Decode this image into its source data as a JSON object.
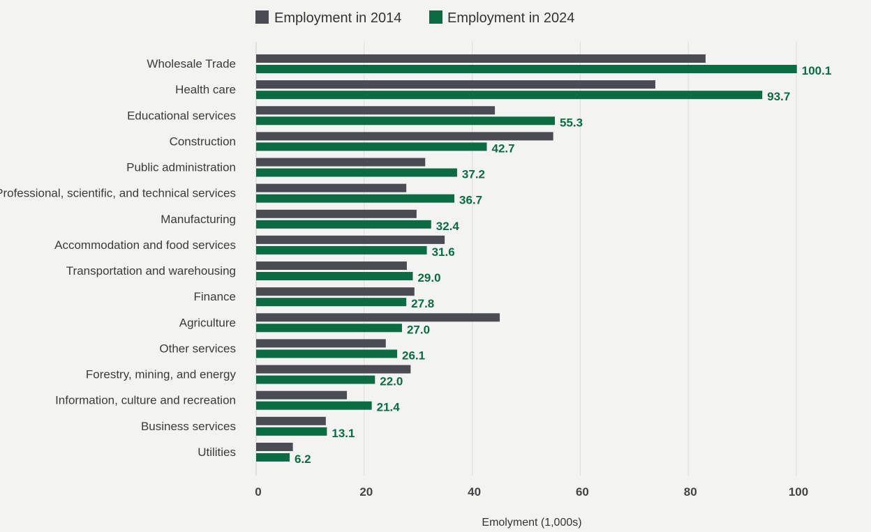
{
  "chart_data": {
    "type": "bar",
    "orientation": "horizontal",
    "categories": [
      "Wholesale Trade",
      "Health care",
      "Educational services",
      "Construction",
      "Public administration",
      "Professional, scientific, and technical services",
      "Manufacturing",
      "Accommodation and food services",
      "Transportation and warehousing",
      "Finance",
      "Agriculture",
      "Other services",
      "Forestry, mining, and energy",
      "Information, culture and recreation",
      "Business services",
      "Utilities"
    ],
    "series": [
      {
        "name": "Employment in 2014",
        "color": "#4b4b53",
        "values": [
          83.2,
          73.9,
          44.2,
          55.0,
          31.3,
          27.8,
          29.7,
          34.9,
          27.9,
          29.3,
          45.1,
          24.0,
          28.6,
          16.8,
          12.9,
          6.8
        ]
      },
      {
        "name": "Employment in 2024",
        "color": "#0b6b43",
        "values": [
          100.1,
          93.7,
          55.3,
          42.7,
          37.2,
          36.7,
          32.4,
          31.6,
          29.0,
          27.8,
          27.0,
          26.1,
          22.0,
          21.4,
          13.1,
          6.2
        ],
        "labels": [
          "100.1",
          "93.7",
          "55.3",
          "42.7",
          "37.2",
          "36.7",
          "32.4",
          "31.6",
          "29.0",
          "27.8",
          "27.0",
          "26.1",
          "22.0",
          "21.4",
          "13.1",
          "6.2"
        ]
      }
    ],
    "xlabel": "Emolyment (1,000s)",
    "xlim": [
      0,
      100
    ],
    "xticks": [
      "0",
      "20",
      "40",
      "60",
      "80",
      "100"
    ],
    "grid": true,
    "legend": "top"
  }
}
